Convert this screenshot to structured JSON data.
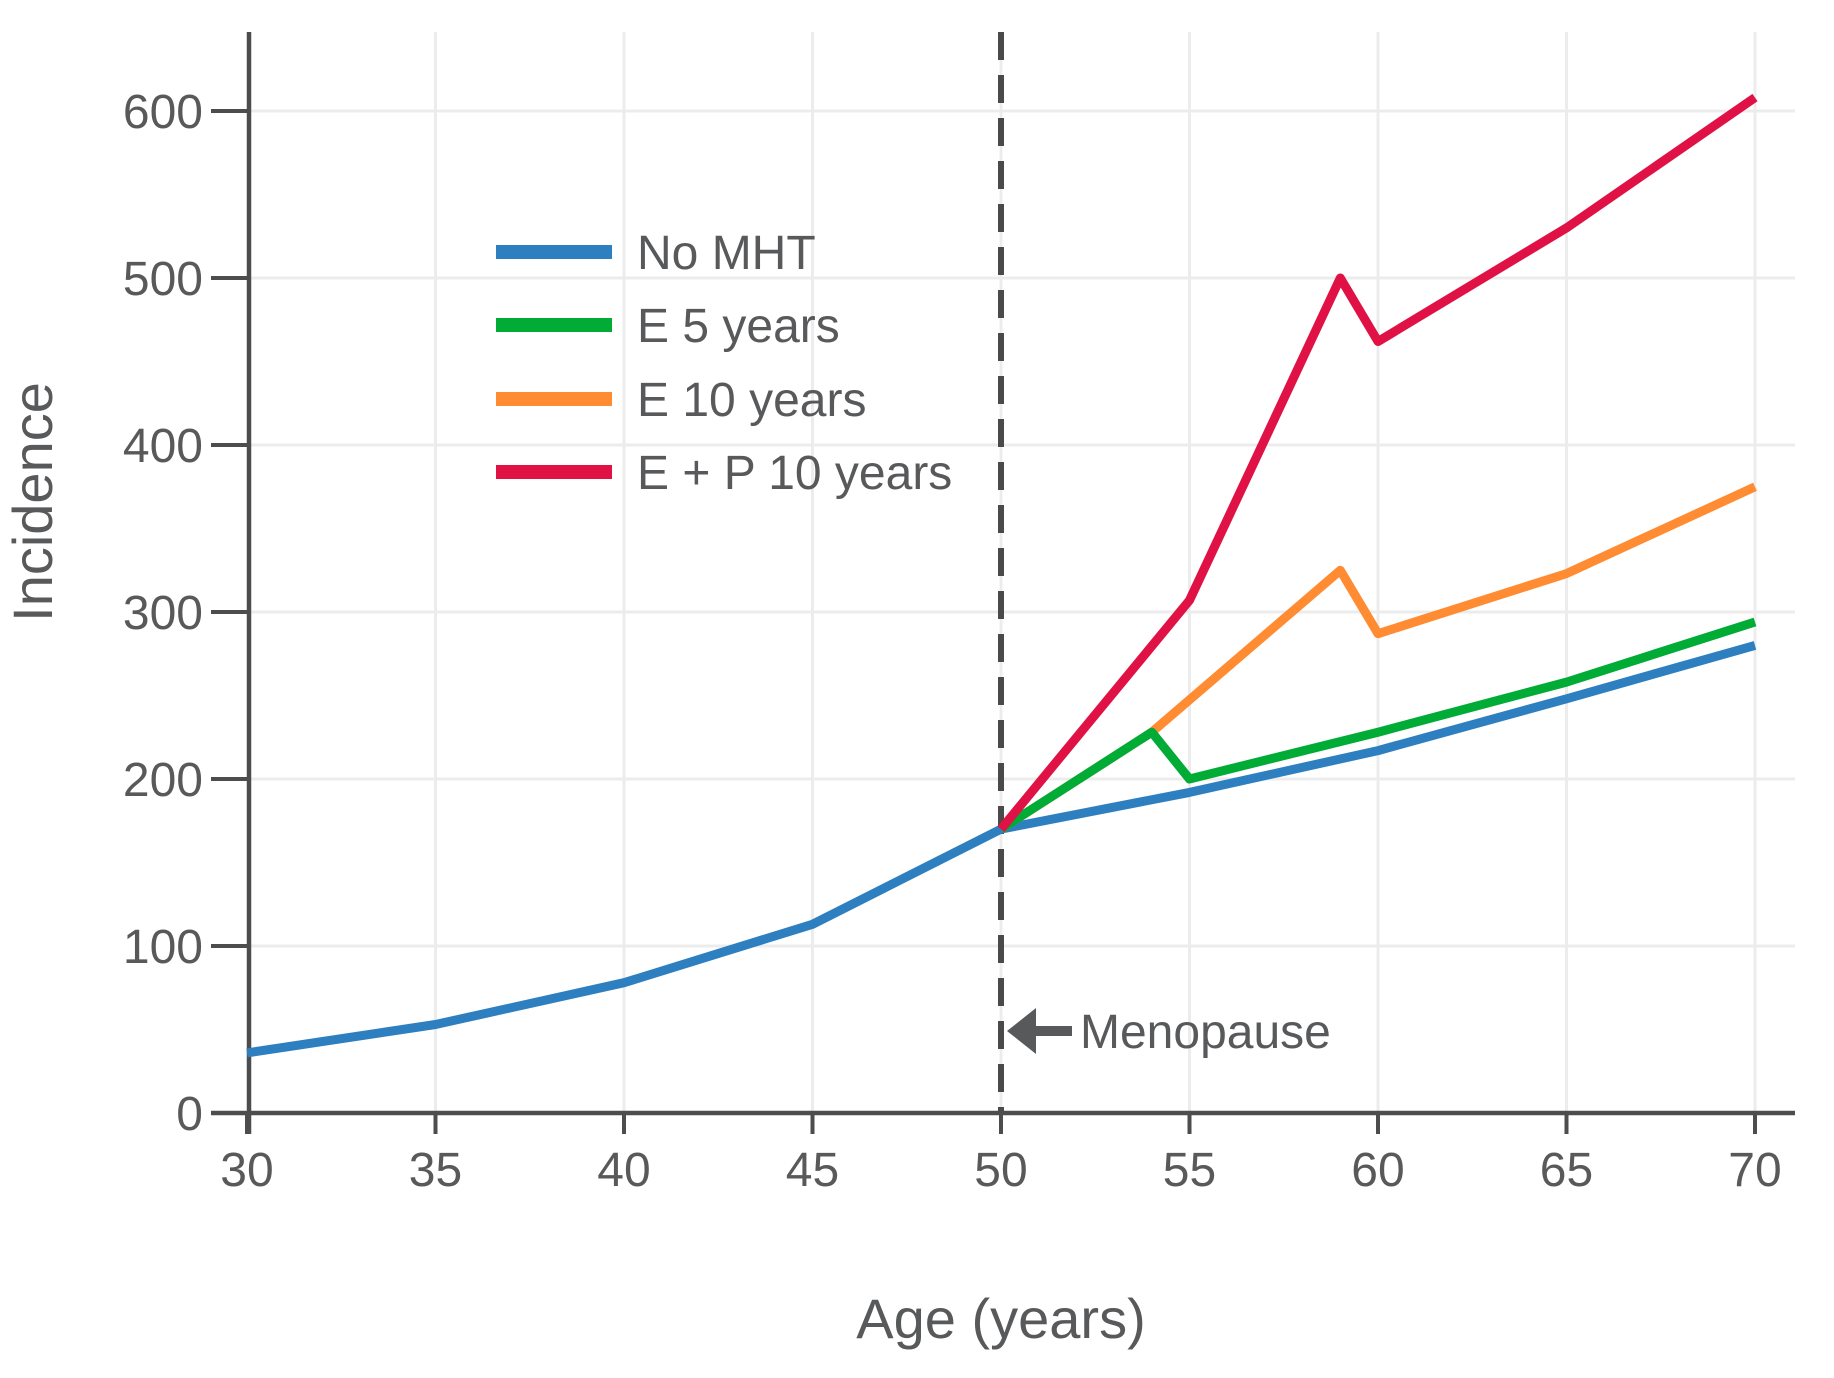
{
  "chart_data": {
    "type": "line",
    "title": "",
    "xlabel": "Age (years)",
    "ylabel": "Incidence",
    "x_ticks": [
      30,
      35,
      40,
      45,
      50,
      55,
      60,
      65,
      70
    ],
    "y_ticks": [
      0,
      100,
      200,
      300,
      400,
      500,
      600
    ],
    "xlim": [
      30,
      71
    ],
    "ylim": [
      0,
      647
    ],
    "grid": true,
    "legend_position": "upper-left-inside",
    "annotation": {
      "label": "Menopause",
      "x": 50,
      "arrow_direction": "left"
    },
    "series": [
      {
        "name": "No MHT",
        "color": "#2e7fc0",
        "points": [
          [
            30,
            36
          ],
          [
            35,
            53
          ],
          [
            40,
            78
          ],
          [
            45,
            113
          ],
          [
            50,
            170
          ],
          [
            55,
            192
          ],
          [
            60,
            217
          ],
          [
            65,
            248
          ],
          [
            70,
            280
          ]
        ]
      },
      {
        "name": "E 5 years",
        "color": "#00ab36",
        "points": [
          [
            50,
            170
          ],
          [
            54,
            228
          ],
          [
            55,
            200
          ],
          [
            60,
            228
          ],
          [
            65,
            258
          ],
          [
            70,
            294
          ]
        ]
      },
      {
        "name": "E 10 years",
        "color": "#ff8c33",
        "points": [
          [
            50,
            170
          ],
          [
            54,
            228
          ],
          [
            59,
            325
          ],
          [
            60,
            287
          ],
          [
            65,
            323
          ],
          [
            70,
            375
          ]
        ]
      },
      {
        "name": "E + P 10 years",
        "color": "#e01144",
        "points": [
          [
            50,
            170
          ],
          [
            55,
            307
          ],
          [
            59,
            500
          ],
          [
            60,
            462
          ],
          [
            65,
            530
          ],
          [
            70,
            608
          ]
        ]
      }
    ],
    "draw_order": [
      0,
      2,
      1,
      3
    ]
  },
  "styles": {
    "background": "#ffffff",
    "grid_color": "#ececec",
    "spine_color": "#4d4d4d",
    "dashed_line_color": "#4a4a4a",
    "tick_text_color": "#595959",
    "label_text_color": "#58595b",
    "arrow_color": "#58595b"
  }
}
